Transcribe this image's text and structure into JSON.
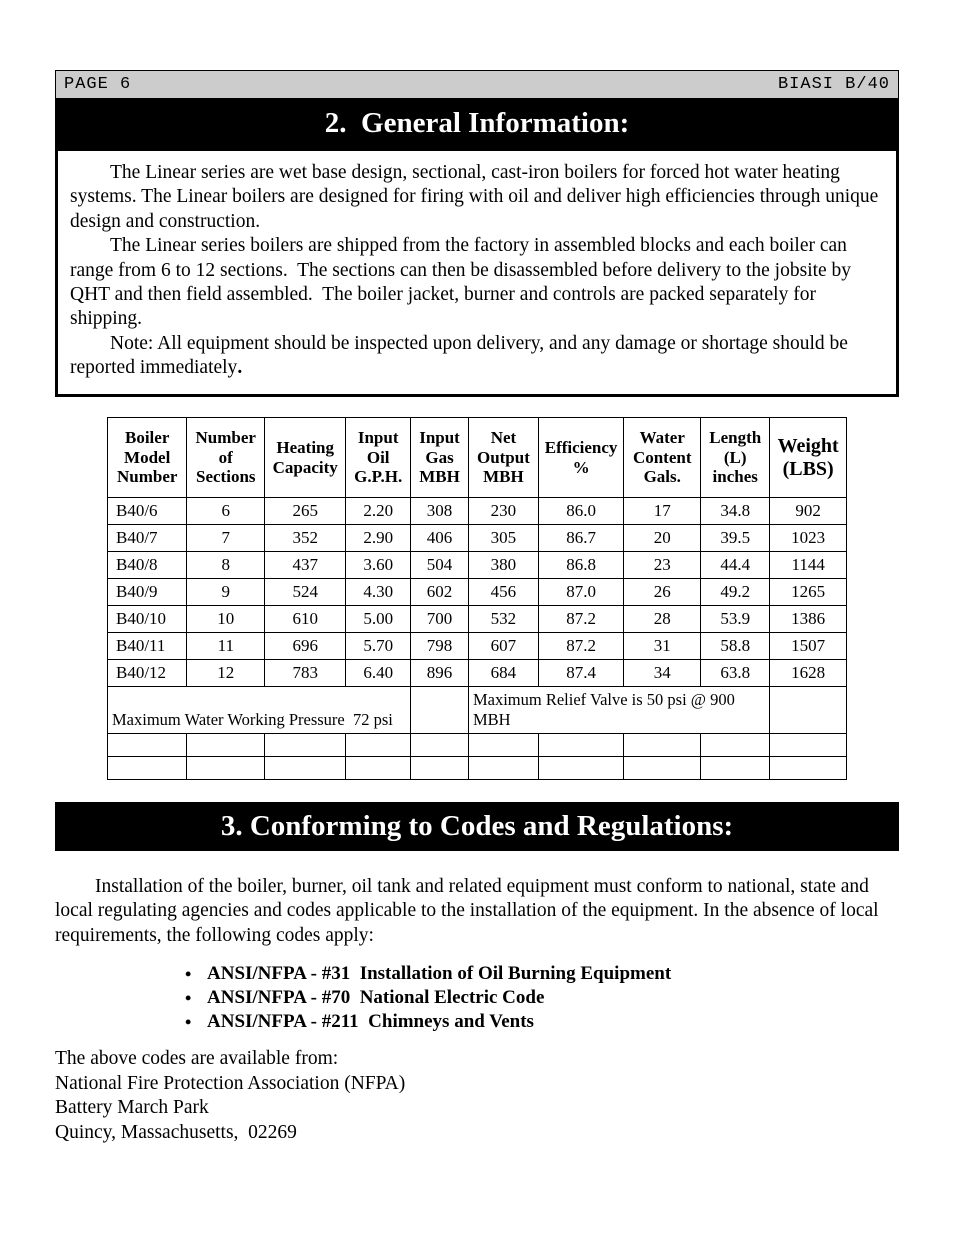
{
  "header": {
    "page_label": "PAGE 6",
    "doc_label": "BIASI B/40"
  },
  "section2": {
    "title": "2.  General Information:",
    "para1": "The Linear series are wet base design, sectional, cast-iron boilers for forced hot water heating systems. The Linear boilers are designed for firing with oil and deliver high efficiencies through unique design and construction.",
    "para2": "The Linear series boilers are shipped from the factory in assembled blocks and each boiler can range from 6 to 12 sections.  The sections can then be disassembled before delivery to the jobsite by QHT and then field assembled.  The boiler jacket, burner and controls are packed separately for shipping.",
    "para3_a": "Note: All equipment should be inspected upon delivery, and any damage or shortage should be reported immediately",
    "para3_b": "."
  },
  "table": {
    "headers": {
      "c0": "Boiler Model Number",
      "c1": "Number of Sections",
      "c2": "Heating Capacity",
      "c3": "Input Oil G.P.H.",
      "c4": "Input Gas MBH",
      "c5": "Net Output MBH",
      "c6": "Efficiency %",
      "c7": "Water Content Gals.",
      "c8": "Length (L) inches",
      "c9": "Weight (LBS)"
    },
    "rows": [
      [
        "B40/6",
        "6",
        "265",
        "2.20",
        "308",
        "230",
        "86.0",
        "17",
        "34.8",
        "902"
      ],
      [
        "B40/7",
        "7",
        "352",
        "2.90",
        "406",
        "305",
        "86.7",
        "20",
        "39.5",
        "1023"
      ],
      [
        "B40/8",
        "8",
        "437",
        "3.60",
        "504",
        "380",
        "86.8",
        "23",
        "44.4",
        "1144"
      ],
      [
        "B40/9",
        "9",
        "524",
        "4.30",
        "602",
        "456",
        "87.0",
        "26",
        "49.2",
        "1265"
      ],
      [
        "B40/10",
        "10",
        "610",
        "5.00",
        "700",
        "532",
        "87.2",
        "28",
        "53.9",
        "1386"
      ],
      [
        "B40/11",
        "11",
        "696",
        "5.70",
        "798",
        "607",
        "87.2",
        "31",
        "58.8",
        "1507"
      ],
      [
        "B40/12",
        "12",
        "783",
        "6.40",
        "896",
        "684",
        "87.4",
        "34",
        "63.8",
        "1628"
      ]
    ],
    "footnote_left": "Maximum Water Working Pressure  72 psi",
    "footnote_right": "Maximum Relief Valve is 50 psi @ 900 MBH"
  },
  "section3": {
    "title": "3. Conforming to Codes and Regulations:",
    "para1": "Installation of the boiler, burner, oil tank and related equipment must conform to national, state and local regulating agencies and codes applicable to the installation of the equipment. In the absence of local requirements, the following codes apply:",
    "codes": [
      "ANSI/NFPA - #31  Installation of Oil Burning Equipment",
      "ANSI/NFPA - #70  National Electric Code",
      "ANSI/NFPA - #211  Chimneys and Vents"
    ],
    "avail": "The above codes are available from:",
    "addr1": "National Fire Protection Association (NFPA)",
    "addr2": "Battery March Park",
    "addr3": "Quincy, Massachusetts,  02269"
  }
}
